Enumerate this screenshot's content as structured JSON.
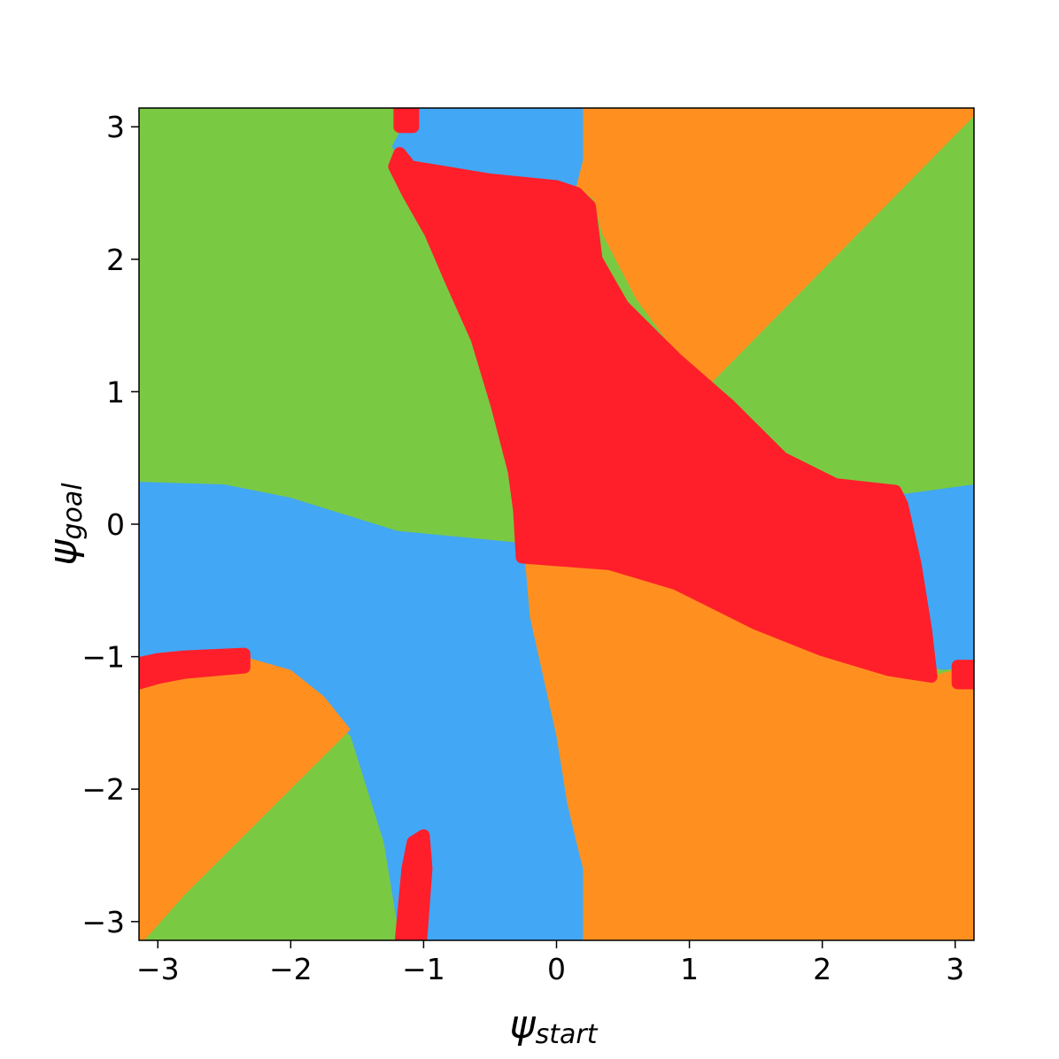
{
  "chart_data": {
    "type": "heatmap",
    "title": "",
    "xlabel": {
      "base": "ψ",
      "sub": "start"
    },
    "ylabel": {
      "base": "ψ",
      "sub": "goal"
    },
    "xlim": [
      -3.1416,
      3.1416
    ],
    "ylim": [
      -3.1416,
      3.1416
    ],
    "grid": false,
    "xticks": [
      {
        "value": -3,
        "label": "−3"
      },
      {
        "value": -2,
        "label": "−2"
      },
      {
        "value": -1,
        "label": "−1"
      },
      {
        "value": 0,
        "label": "0"
      },
      {
        "value": 1,
        "label": "1"
      },
      {
        "value": 2,
        "label": "2"
      },
      {
        "value": 3,
        "label": "3"
      }
    ],
    "yticks": [
      {
        "value": 3,
        "label": "3"
      },
      {
        "value": 2,
        "label": "2"
      },
      {
        "value": 1,
        "label": "1"
      },
      {
        "value": 0,
        "label": "0"
      },
      {
        "value": -1,
        "label": "−1"
      },
      {
        "value": -2,
        "label": "−2"
      },
      {
        "value": -3,
        "label": "−3"
      }
    ],
    "classes": {
      "green": "#7ac943",
      "blue": "#42a7f5",
      "orange": "#ff9020",
      "red": "#ff1f2a"
    },
    "background_class": "green",
    "regions": [
      {
        "class": "blue",
        "points": [
          [
            -1.2,
            3.14
          ],
          [
            -1.16,
            3.0
          ],
          [
            -1.24,
            2.85
          ],
          [
            -1.1,
            2.7
          ],
          [
            0.15,
            2.55
          ],
          [
            0.2,
            2.75
          ],
          [
            0.2,
            3.14
          ]
        ]
      },
      {
        "class": "orange",
        "points": [
          [
            0.2,
            3.14
          ],
          [
            0.2,
            2.75
          ],
          [
            0.15,
            2.55
          ],
          [
            0.28,
            2.45
          ],
          [
            0.34,
            2.2
          ],
          [
            0.6,
            1.7
          ],
          [
            1.0,
            1.15
          ],
          [
            1.1,
            1.0
          ],
          [
            3.14,
            3.08
          ],
          [
            3.14,
            3.14
          ]
        ]
      },
      {
        "class": "blue",
        "points": [
          [
            -3.14,
            0.32
          ],
          [
            -2.5,
            0.3
          ],
          [
            -2.0,
            0.2
          ],
          [
            -1.2,
            -0.05
          ],
          [
            -0.28,
            -0.14
          ],
          [
            -0.24,
            -0.23
          ],
          [
            -0.2,
            -0.7
          ],
          [
            0.0,
            -1.6
          ],
          [
            0.08,
            -2.1
          ],
          [
            0.15,
            -2.4
          ],
          [
            0.2,
            -2.6
          ],
          [
            0.2,
            -3.14
          ],
          [
            -1.18,
            -3.14
          ],
          [
            -1.3,
            -2.4
          ],
          [
            -1.55,
            -1.6
          ],
          [
            -2.0,
            -1.2
          ],
          [
            -2.4,
            -1.0
          ],
          [
            -3.14,
            -1.05
          ]
        ]
      },
      {
        "class": "orange",
        "points": [
          [
            -3.14,
            -1.2
          ],
          [
            -3.0,
            -1.15
          ],
          [
            -2.8,
            -1.1
          ],
          [
            -2.35,
            -1.0
          ],
          [
            -2.0,
            -1.1
          ],
          [
            -1.75,
            -1.3
          ],
          [
            -1.55,
            -1.55
          ],
          [
            -2.0,
            -2.0
          ],
          [
            -2.8,
            -2.8
          ],
          [
            -3.1,
            -3.14
          ],
          [
            -3.14,
            -3.14
          ]
        ]
      },
      {
        "class": "orange",
        "points": [
          [
            -0.24,
            -0.23
          ],
          [
            0.5,
            -0.3
          ],
          [
            1.2,
            -0.5
          ],
          [
            1.8,
            -0.8
          ],
          [
            2.3,
            -1.05
          ],
          [
            2.8,
            -1.15
          ],
          [
            3.0,
            -1.1
          ],
          [
            3.14,
            -1.1
          ],
          [
            3.14,
            -3.14
          ],
          [
            0.2,
            -3.14
          ],
          [
            0.2,
            -2.6
          ],
          [
            0.15,
            -2.4
          ],
          [
            0.08,
            -2.1
          ],
          [
            0.0,
            -1.6
          ],
          [
            -0.2,
            -0.7
          ]
        ]
      },
      {
        "class": "blue",
        "points": [
          [
            2.55,
            0.22
          ],
          [
            3.14,
            0.3
          ],
          [
            3.14,
            -1.08
          ],
          [
            2.9,
            -1.1
          ],
          [
            2.82,
            -1.08
          ],
          [
            2.7,
            -0.7
          ],
          [
            2.6,
            -0.2
          ]
        ]
      },
      {
        "class": "red",
        "points": [
          [
            -1.18,
            2.8
          ],
          [
            -1.1,
            2.7
          ],
          [
            -0.5,
            2.6
          ],
          [
            0.0,
            2.55
          ],
          [
            0.15,
            2.5
          ],
          [
            0.25,
            2.4
          ],
          [
            0.3,
            2.0
          ],
          [
            0.5,
            1.65
          ],
          [
            0.9,
            1.25
          ],
          [
            1.3,
            0.9
          ],
          [
            1.7,
            0.5
          ],
          [
            2.1,
            0.3
          ],
          [
            2.55,
            0.25
          ],
          [
            2.6,
            0.15
          ],
          [
            2.7,
            -0.3
          ],
          [
            2.78,
            -0.8
          ],
          [
            2.82,
            -1.15
          ],
          [
            2.5,
            -1.1
          ],
          [
            2.0,
            -0.95
          ],
          [
            1.5,
            -0.75
          ],
          [
            0.9,
            -0.45
          ],
          [
            0.4,
            -0.3
          ],
          [
            -0.26,
            -0.25
          ],
          [
            -0.28,
            0.1
          ],
          [
            -0.32,
            0.4
          ],
          [
            -0.45,
            0.9
          ],
          [
            -0.6,
            1.4
          ],
          [
            -0.8,
            1.85
          ],
          [
            -0.95,
            2.2
          ],
          [
            -1.12,
            2.5
          ],
          [
            -1.22,
            2.7
          ]
        ]
      },
      {
        "class": "red",
        "points": [
          [
            -1.18,
            3.14
          ],
          [
            -1.08,
            3.14
          ],
          [
            -1.08,
            3.0
          ],
          [
            -1.18,
            3.0
          ]
        ]
      },
      {
        "class": "red",
        "points": [
          [
            -3.14,
            -1.05
          ],
          [
            -3.0,
            -1.02
          ],
          [
            -2.8,
            -1.0
          ],
          [
            -2.35,
            -0.98
          ],
          [
            -2.35,
            -1.08
          ],
          [
            -2.8,
            -1.12
          ],
          [
            -3.0,
            -1.16
          ],
          [
            -3.14,
            -1.2
          ]
        ]
      },
      {
        "class": "red",
        "points": [
          [
            -1.17,
            -3.14
          ],
          [
            -1.12,
            -2.6
          ],
          [
            -1.08,
            -2.4
          ],
          [
            -1.0,
            -2.35
          ],
          [
            -0.98,
            -2.6
          ],
          [
            -1.02,
            -3.14
          ]
        ]
      },
      {
        "class": "red",
        "points": [
          [
            3.02,
            -1.07
          ],
          [
            3.14,
            -1.07
          ],
          [
            3.14,
            -1.2
          ],
          [
            3.02,
            -1.2
          ]
        ]
      }
    ]
  }
}
